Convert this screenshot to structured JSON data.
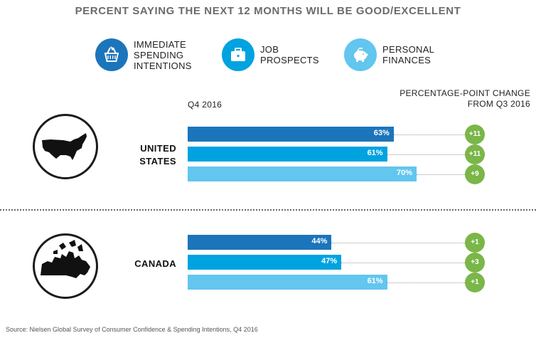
{
  "title": "PERCENT SAYING THE NEXT 12 MONTHS WILL BE GOOD/EXCELLENT",
  "legend": [
    {
      "label": "IMMEDIATE SPENDING INTENTIONS",
      "icon": "shopping-basket-icon",
      "color": "#1b75bb"
    },
    {
      "label": "JOB PROSPECTS",
      "icon": "briefcase-icon",
      "color": "#00a3e0"
    },
    {
      "label": "PERSONAL FINANCES",
      "icon": "piggy-bank-icon",
      "color": "#62c6ef"
    }
  ],
  "column_label_left": "Q4 2016",
  "column_label_right": "PERCENTAGE-POINT CHANGE FROM Q3 2016",
  "chart_data": {
    "type": "bar",
    "orientation": "horizontal",
    "title": "PERCENT SAYING THE NEXT 12 MONTHS WILL BE GOOD/EXCELLENT",
    "categories": [
      "UNITED STATES",
      "CANADA"
    ],
    "series": [
      {
        "name": "IMMEDIATE SPENDING INTENTIONS",
        "values": [
          63,
          44
        ],
        "change": [
          "+11",
          "+1"
        ],
        "labels": [
          "63%",
          "44%"
        ]
      },
      {
        "name": "JOB PROSPECTS",
        "values": [
          61,
          47
        ],
        "change": [
          "+11",
          "+3"
        ],
        "labels": [
          "61%",
          "47%"
        ]
      },
      {
        "name": "PERSONAL FINANCES",
        "values": [
          70,
          61
        ],
        "change": [
          "+9",
          "+1"
        ],
        "labels": [
          "70%",
          "61%"
        ]
      }
    ],
    "unit": "%",
    "xlim": [
      0,
      100
    ]
  },
  "colors": {
    "badge": "#7ab648",
    "series": [
      "#1b75bb",
      "#00a3e0",
      "#62c6ef"
    ]
  },
  "source": "Source: Nielsen Global Survey of Consumer Confidence & Spending Intentions, Q4 2016"
}
